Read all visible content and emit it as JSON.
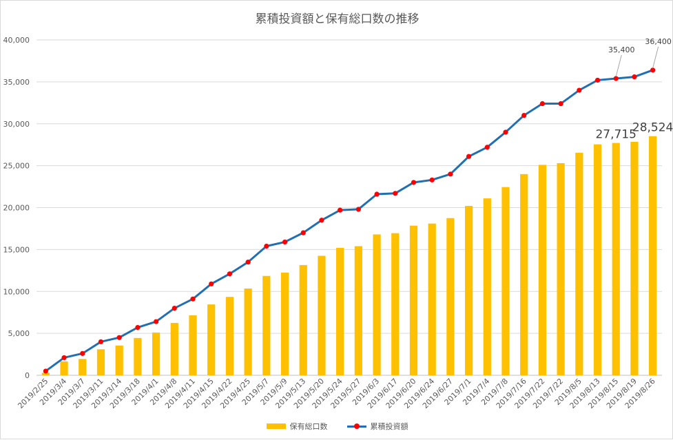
{
  "chart_data": {
    "type": "bar",
    "title": "累積投資額と保有総口数の推移",
    "categories": [
      "2019/2/25",
      "2019/3/4",
      "2019/3/7",
      "2019/3/11",
      "2019/3/14",
      "2019/3/18",
      "2019/4/1",
      "2019/4/8",
      "2019/4/11",
      "2019/4/15",
      "2019/4/22",
      "2019/4/25",
      "2019/5/7",
      "2019/5/9",
      "2019/5/13",
      "2019/5/20",
      "2019/5/24",
      "2019/5/27",
      "2019/6/3",
      "2019/6/17",
      "2019/6/20",
      "2019/6/24",
      "2019/6/27",
      "2019/7/1",
      "2019/7/4",
      "2019/7/8",
      "2019/7/16",
      "2019/7/22",
      "2019/7/22",
      "2019/8/5",
      "2019/8/13",
      "2019/8/15",
      "2019/8/19",
      "2019/8/26"
    ],
    "ylim": [
      0,
      40000
    ],
    "yticks": [
      "0",
      "5,000",
      "10,000",
      "15,000",
      "20,000",
      "25,000",
      "30,000",
      "35,000",
      "40,000"
    ],
    "grid": true,
    "legend_position": "bottom",
    "series": [
      {
        "name": "保有総口数",
        "type": "bar",
        "color": "#ffc000",
        "values": [
          300,
          1650,
          1950,
          3100,
          3550,
          4450,
          5100,
          6250,
          7150,
          8450,
          9350,
          10350,
          11850,
          12250,
          13150,
          14250,
          15200,
          15400,
          16800,
          16950,
          17850,
          18100,
          18750,
          20200,
          21100,
          22450,
          24000,
          25100,
          25300,
          26550,
          27550,
          27715,
          27850,
          28524
        ]
      },
      {
        "name": "累積投資額",
        "type": "line",
        "color": "#1f6fb2",
        "marker_color": "#ff0000",
        "values": [
          500,
          2100,
          2600,
          4000,
          4500,
          5700,
          6400,
          8000,
          9100,
          10900,
          12100,
          13500,
          15400,
          15900,
          17000,
          18500,
          19700,
          19800,
          21600,
          21700,
          23000,
          23300,
          24000,
          26100,
          27200,
          29000,
          31000,
          32400,
          32400,
          34000,
          35200,
          35400,
          35600,
          36400
        ]
      }
    ],
    "annotations": [
      {
        "series": "保有総口数",
        "index": 31,
        "text": "27,715"
      },
      {
        "series": "保有総口数",
        "index": 33,
        "text": "28,524"
      },
      {
        "series": "累積投資額",
        "index": 31,
        "text": "35,400"
      },
      {
        "series": "累積投資額",
        "index": 33,
        "text": "36,400"
      }
    ]
  }
}
